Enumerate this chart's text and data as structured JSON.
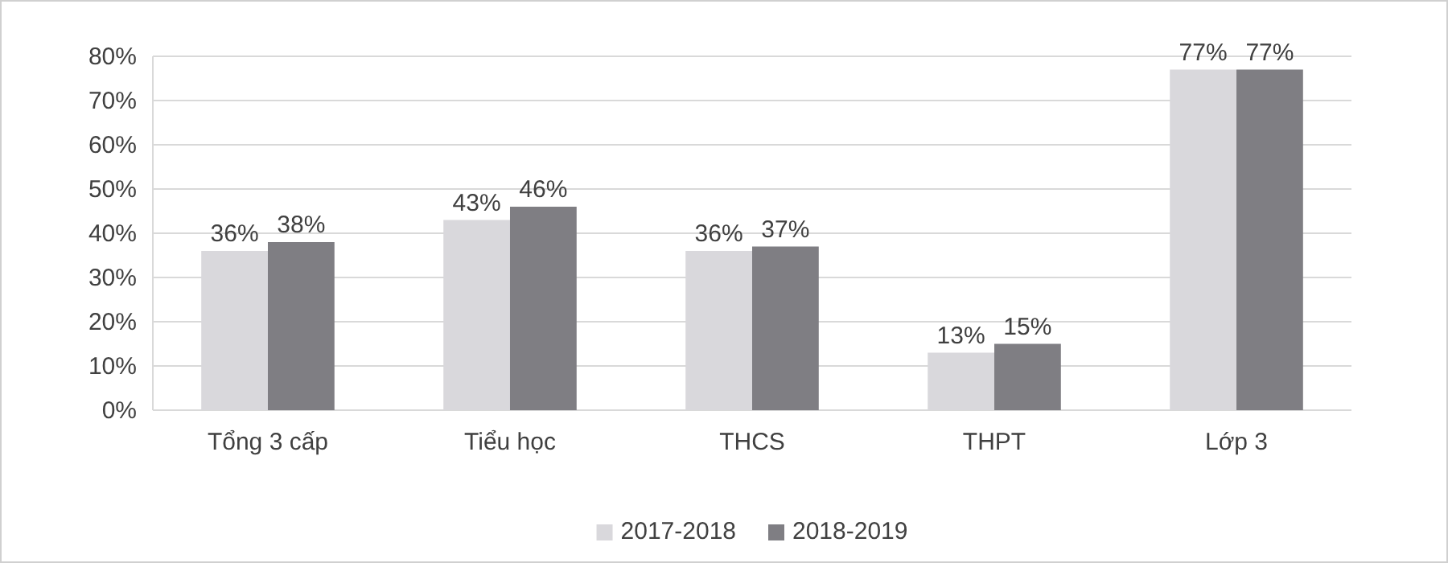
{
  "chart_data": {
    "type": "bar",
    "categories": [
      "Tổng 3 cấp",
      "Tiểu học",
      "THCS",
      "THPT",
      "Lớp 3"
    ],
    "series": [
      {
        "name": "2017-2018",
        "color": "#d9d8dc",
        "values": [
          36,
          43,
          36,
          13,
          77
        ],
        "value_labels": [
          "36%",
          "43%",
          "36%",
          "13%",
          "77%"
        ]
      },
      {
        "name": "2018-2019",
        "color": "#7f7e83",
        "values": [
          38,
          46,
          37,
          15,
          77
        ],
        "value_labels": [
          "38%",
          "46%",
          "37%",
          "15%",
          "77%"
        ]
      }
    ],
    "ylim": [
      0,
      80
    ],
    "yticks": [
      {
        "value": 0,
        "label": "0%"
      },
      {
        "value": 10,
        "label": "10%"
      },
      {
        "value": 20,
        "label": "20%"
      },
      {
        "value": 30,
        "label": "30%"
      },
      {
        "value": 40,
        "label": "40%"
      },
      {
        "value": 50,
        "label": "50%"
      },
      {
        "value": 60,
        "label": "60%"
      },
      {
        "value": 70,
        "label": "70%"
      },
      {
        "value": 80,
        "label": "80%"
      }
    ],
    "grid": "y",
    "legend": "bottom"
  }
}
